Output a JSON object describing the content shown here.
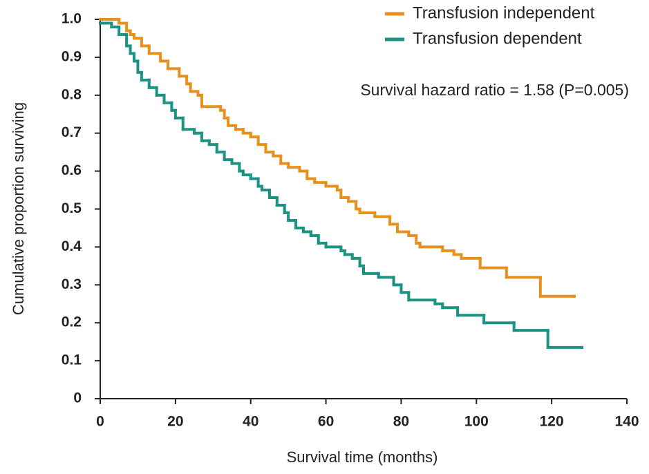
{
  "chart_data": {
    "type": "step",
    "annotation": "Survival hazard ratio = 1.58 (P=0.005)",
    "xlabel": "Survival time (months)",
    "ylabel": "Cumulative proportion surviving",
    "xlim": [
      0,
      140
    ],
    "xticks": [
      0,
      20,
      40,
      60,
      80,
      100,
      120,
      140
    ],
    "ylim": [
      0,
      1
    ],
    "yticks": [
      0,
      0.1,
      0.2,
      0.3,
      0.4,
      0.5,
      0.6,
      0.7,
      0.8,
      0.9,
      {
        "value": 1,
        "label": "1.0"
      }
    ],
    "legend": "top-right",
    "series": [
      {
        "name": "Transfusion independent",
        "color": "#e8901e",
        "x": [
          0,
          5,
          7,
          8,
          9,
          11,
          13,
          16,
          18,
          21,
          23,
          24,
          26,
          27,
          32,
          33,
          34,
          36,
          38,
          40,
          42,
          44,
          46,
          48,
          50,
          53,
          55,
          57,
          60,
          63,
          64,
          66,
          68,
          69,
          73,
          77,
          79,
          82,
          84,
          85,
          91,
          94,
          96,
          101,
          108,
          117,
          126
        ],
        "values": [
          1.0,
          0.99,
          0.97,
          0.96,
          0.95,
          0.93,
          0.91,
          0.89,
          0.87,
          0.85,
          0.83,
          0.81,
          0.8,
          0.77,
          0.76,
          0.74,
          0.72,
          0.71,
          0.7,
          0.69,
          0.67,
          0.65,
          0.64,
          0.62,
          0.61,
          0.6,
          0.58,
          0.57,
          0.56,
          0.55,
          0.53,
          0.52,
          0.5,
          0.49,
          0.48,
          0.46,
          0.44,
          0.43,
          0.41,
          0.4,
          0.39,
          0.38,
          0.37,
          0.345,
          0.32,
          0.27,
          0.27
        ]
      },
      {
        "name": "Transfusion dependent",
        "color": "#1b9382",
        "x": [
          0,
          3,
          5,
          7,
          8,
          9,
          10,
          11,
          13,
          15,
          17,
          19,
          20,
          22,
          25,
          27,
          29,
          31,
          33,
          35,
          37,
          38,
          40,
          42,
          43,
          45,
          47,
          49,
          50,
          52,
          54,
          56,
          58,
          60,
          64,
          65,
          67,
          69,
          70,
          74,
          78,
          80,
          82,
          89,
          91,
          95,
          102,
          110,
          119,
          128
        ],
        "values": [
          0.99,
          0.98,
          0.96,
          0.93,
          0.91,
          0.89,
          0.86,
          0.84,
          0.82,
          0.8,
          0.78,
          0.76,
          0.74,
          0.71,
          0.7,
          0.68,
          0.67,
          0.65,
          0.63,
          0.62,
          0.6,
          0.59,
          0.58,
          0.56,
          0.55,
          0.53,
          0.51,
          0.49,
          0.47,
          0.45,
          0.44,
          0.43,
          0.41,
          0.4,
          0.39,
          0.38,
          0.37,
          0.35,
          0.33,
          0.32,
          0.3,
          0.28,
          0.26,
          0.25,
          0.24,
          0.22,
          0.2,
          0.18,
          0.135,
          0.135
        ]
      }
    ]
  }
}
